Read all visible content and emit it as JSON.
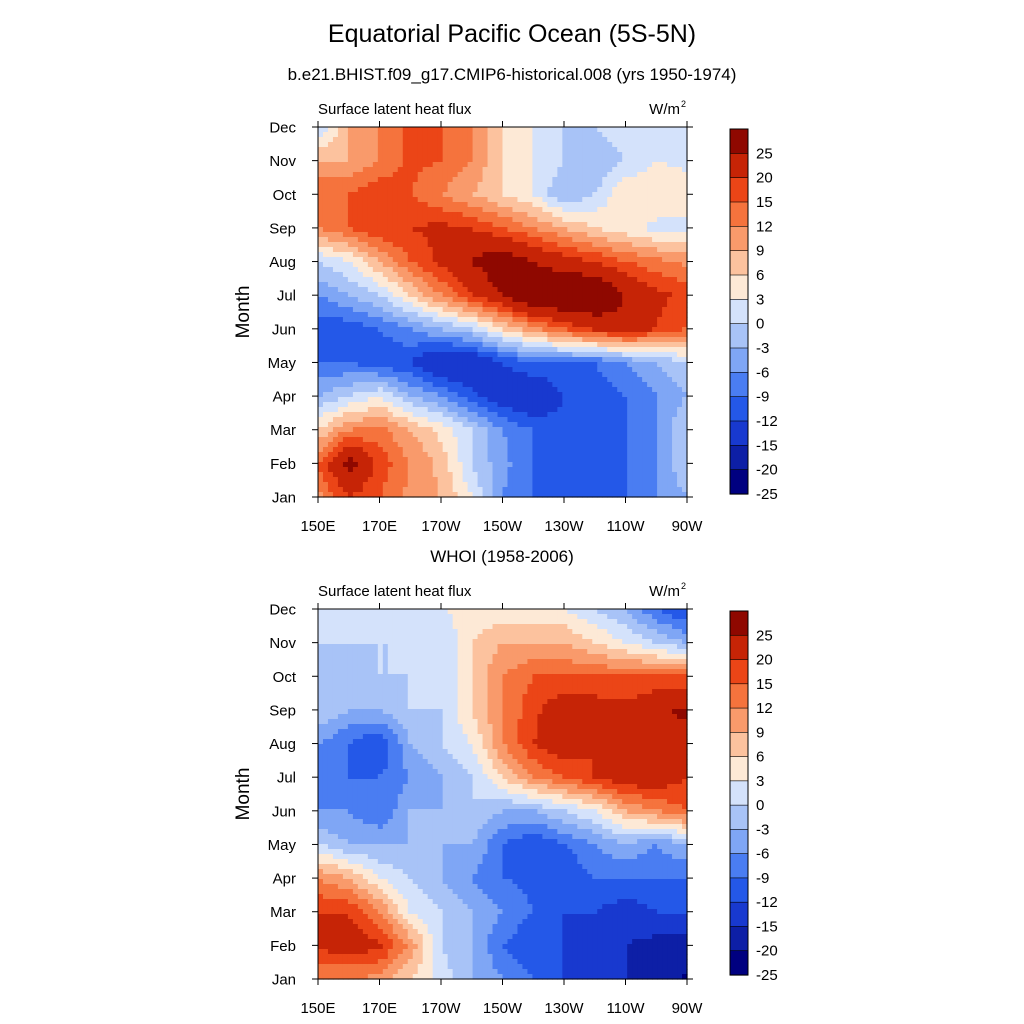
{
  "figure": {
    "title": "Equatorial Pacific Ocean (5S-5N)",
    "subtitle": "b.e21.BHIST.f09_g17.CMIP6-historical.008 (yrs 1950-1974)"
  },
  "colors": {
    "palette": [
      "#000080",
      "#0d1fa6",
      "#1839cf",
      "#2458e8",
      "#4a7df2",
      "#7fa6f5",
      "#a8c3f7",
      "#d4e2fb",
      "#fde9d6",
      "#fcc29e",
      "#f99a6b",
      "#f5733d",
      "#eb4517",
      "#c62406",
      "#8f0800"
    ],
    "palette_note_levels": [
      -25,
      -20,
      -15,
      -12,
      -9,
      -6,
      -3,
      0,
      3,
      6,
      9,
      12,
      15,
      20,
      25
    ]
  },
  "chart_data": [
    {
      "type": "heatmap",
      "title": "",
      "left_string": "Surface latent heat flux",
      "right_string": "W/m",
      "right_string_sup": "2",
      "xlabel": "",
      "ylabel": "Month",
      "x_ticks": [
        "150E",
        "170E",
        "170W",
        "150W",
        "130W",
        "110W",
        "90W"
      ],
      "x_tick_values": [
        150,
        170,
        190,
        210,
        230,
        250,
        270
      ],
      "y_ticks": [
        "Jan",
        "Feb",
        "Mar",
        "Apr",
        "May",
        "Jun",
        "Jul",
        "Aug",
        "Sep",
        "Oct",
        "Nov",
        "Dec"
      ],
      "xlim": [
        150,
        270
      ],
      "ylim": [
        1,
        12
      ],
      "colorbar_labels": [
        "-25",
        "-20",
        "-15",
        "-12",
        "-9",
        "-6",
        "-3",
        "0",
        "3",
        "6",
        "9",
        "12",
        "15",
        "20",
        "25"
      ],
      "colorbar_levels": [
        -25,
        -20,
        -15,
        -12,
        -9,
        -6,
        -3,
        0,
        3,
        6,
        9,
        12,
        15,
        20,
        25
      ],
      "grid_lon": [
        150,
        160,
        170,
        180,
        190,
        200,
        210,
        220,
        230,
        240,
        250,
        260,
        270
      ],
      "grid_month": [
        1,
        2,
        3,
        4,
        5,
        6,
        7,
        8,
        9,
        10,
        11,
        12
      ],
      "values": [
        [
          8,
          15,
          12,
          8,
          6,
          0,
          -9,
          -12,
          -15,
          -14,
          -12,
          -9,
          -6
        ],
        [
          12,
          22,
          14,
          9,
          5,
          -3,
          -8,
          -12,
          -14,
          -14,
          -12,
          -9,
          -3
        ],
        [
          3,
          9,
          10,
          6,
          2,
          -3,
          -9,
          -12,
          -14,
          -14,
          -12,
          -9,
          -3
        ],
        [
          -6,
          -3,
          0,
          -6,
          -9,
          -14,
          -18,
          -20,
          -15,
          -14,
          -12,
          -9,
          -6
        ],
        [
          -12,
          -12,
          -14,
          -15,
          -20,
          -20,
          -15,
          -12,
          -12,
          -12,
          -9,
          -6,
          -3
        ],
        [
          -14,
          -14,
          -12,
          -9,
          -6,
          -3,
          3,
          8,
          12,
          16,
          18,
          15,
          12
        ],
        [
          -9,
          -6,
          -3,
          3,
          9,
          15,
          20,
          26,
          27,
          26,
          20,
          16,
          14
        ],
        [
          -3,
          0,
          6,
          12,
          16,
          20,
          24,
          20,
          17,
          15,
          12,
          10,
          8
        ],
        [
          9,
          12,
          15,
          15,
          16,
          15,
          12,
          9,
          6,
          3,
          1,
          -1,
          -1
        ],
        [
          12,
          12,
          15,
          12,
          9,
          6,
          3,
          0,
          -6,
          -3,
          3,
          3,
          2
        ],
        [
          6,
          6,
          9,
          13,
          12,
          9,
          3,
          0,
          -3,
          -6,
          -3,
          0,
          -1
        ],
        [
          -3,
          6,
          9,
          13,
          12,
          9,
          3,
          0,
          -3,
          -3,
          0,
          0,
          -3
        ]
      ]
    },
    {
      "type": "heatmap",
      "title": "WHOI (1958-2006)",
      "left_string": "Surface latent heat flux",
      "right_string": "W/m",
      "right_string_sup": "2",
      "xlabel": "",
      "ylabel": "Month",
      "x_ticks": [
        "150E",
        "170E",
        "170W",
        "150W",
        "130W",
        "110W",
        "90W"
      ],
      "x_tick_values": [
        150,
        170,
        190,
        210,
        230,
        250,
        270
      ],
      "y_ticks": [
        "Jan",
        "Feb",
        "Mar",
        "Apr",
        "May",
        "Jun",
        "Jul",
        "Aug",
        "Sep",
        "Oct",
        "Nov",
        "Dec"
      ],
      "xlim": [
        150,
        270
      ],
      "ylim": [
        1,
        12
      ],
      "colorbar_labels": [
        "-25",
        "-20",
        "-15",
        "-12",
        "-9",
        "-6",
        "-3",
        "0",
        "3",
        "6",
        "9",
        "12",
        "15",
        "20",
        "25"
      ],
      "colorbar_levels": [
        -25,
        -20,
        -15,
        -12,
        -9,
        -6,
        -3,
        0,
        3,
        6,
        9,
        12,
        15,
        20,
        25
      ],
      "grid_lon": [
        150,
        160,
        170,
        180,
        190,
        200,
        210,
        220,
        230,
        240,
        250,
        260,
        270
      ],
      "grid_month": [
        1,
        2,
        3,
        4,
        5,
        6,
        7,
        8,
        9,
        10,
        11,
        12
      ],
      "values": [
        [
          9,
          9,
          8,
          3,
          -1,
          -6,
          -9,
          -12,
          -15,
          -18,
          -20,
          -22,
          -26
        ],
        [
          16,
          17,
          16,
          8,
          -3,
          -6,
          -12,
          -15,
          -15,
          -20,
          -20,
          -22,
          -22
        ],
        [
          15,
          15,
          9,
          0,
          -3,
          -6,
          -9,
          -12,
          -15,
          -15,
          -17,
          -15,
          -15
        ],
        [
          9,
          6,
          0,
          -3,
          -6,
          -9,
          -12,
          -13,
          -15,
          -12,
          -12,
          -12,
          -12
        ],
        [
          -3,
          -6,
          -6,
          -6,
          -6,
          -6,
          -12,
          -15,
          -12,
          -9,
          -6,
          -9,
          -6
        ],
        [
          -9,
          -9,
          -12,
          -6,
          -6,
          -3,
          -6,
          -6,
          -3,
          0,
          6,
          9,
          12
        ],
        [
          -12,
          -12,
          -12,
          -9,
          -6,
          -3,
          3,
          9,
          12,
          15,
          18,
          18,
          15
        ],
        [
          -9,
          -12,
          -15,
          -6,
          -3,
          0,
          9,
          15,
          18,
          15,
          16,
          18,
          18
        ],
        [
          -3,
          -6,
          -6,
          -3,
          -3,
          3,
          9,
          14,
          18,
          17,
          16,
          19,
          21
        ],
        [
          -3,
          -6,
          -3,
          -3,
          -3,
          3,
          9,
          12,
          12,
          12,
          12,
          12,
          12
        ],
        [
          -3,
          -3,
          -3,
          -3,
          -3,
          3,
          6,
          6,
          6,
          3,
          0,
          -3,
          -6
        ],
        [
          -3,
          -3,
          -3,
          -1,
          0,
          1,
          1,
          1,
          0,
          -3,
          -6,
          -12,
          -16
        ]
      ]
    }
  ]
}
